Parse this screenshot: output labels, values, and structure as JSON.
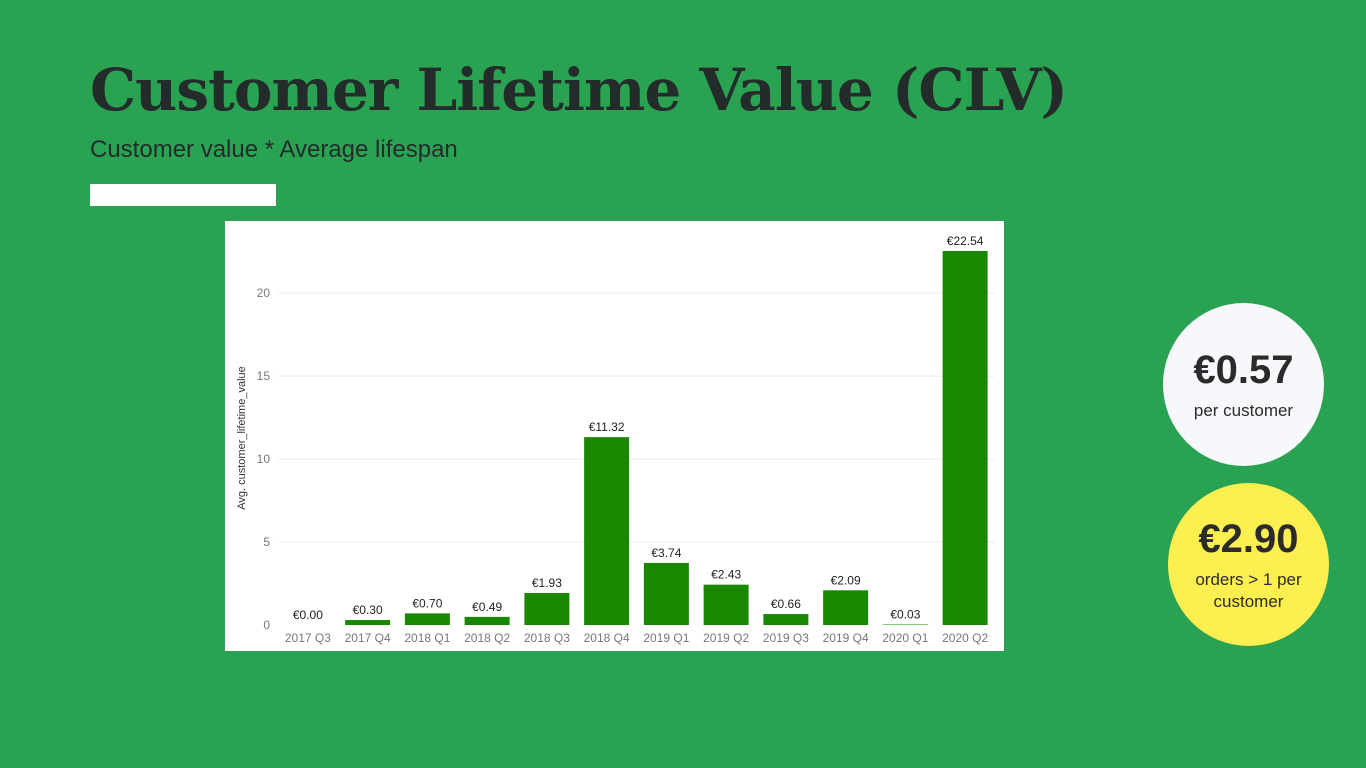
{
  "header": {
    "title": "Customer Lifetime Value (CLV)",
    "subtitle": "Customer value * Average lifespan"
  },
  "kpis": [
    {
      "value": "€0.57",
      "label": "per customer"
    },
    {
      "value": "€2.90",
      "label": "orders > 1 per customer"
    }
  ],
  "colors": {
    "background": "#29a352",
    "bar": "#198700",
    "kpi_1_bg": "#f7f8fb",
    "kpi_2_bg": "#fdef4f",
    "text_dark": "#232b2b"
  },
  "chart_data": {
    "type": "bar",
    "title": "",
    "xlabel": "",
    "ylabel": "Avg. customer_lifetime_value",
    "categories": [
      "2017 Q3",
      "2017 Q4",
      "2018 Q1",
      "2018 Q2",
      "2018 Q3",
      "2018 Q4",
      "2019 Q1",
      "2019 Q2",
      "2019 Q3",
      "2019 Q4",
      "2020 Q1",
      "2020 Q2"
    ],
    "values": [
      0.0,
      0.3,
      0.7,
      0.49,
      1.93,
      11.32,
      3.74,
      2.43,
      0.66,
      2.09,
      0.03,
      22.54
    ],
    "data_labels": [
      "€0.00",
      "€0.30",
      "€0.70",
      "€0.49",
      "€1.93",
      "€11.32",
      "€3.74",
      "€2.43",
      "€0.66",
      "€2.09",
      "€0.03",
      "€22.54"
    ],
    "yticks": [
      0,
      5,
      10,
      15,
      20
    ],
    "ylim": [
      0,
      22.54
    ],
    "grid": true,
    "legend": "none"
  }
}
